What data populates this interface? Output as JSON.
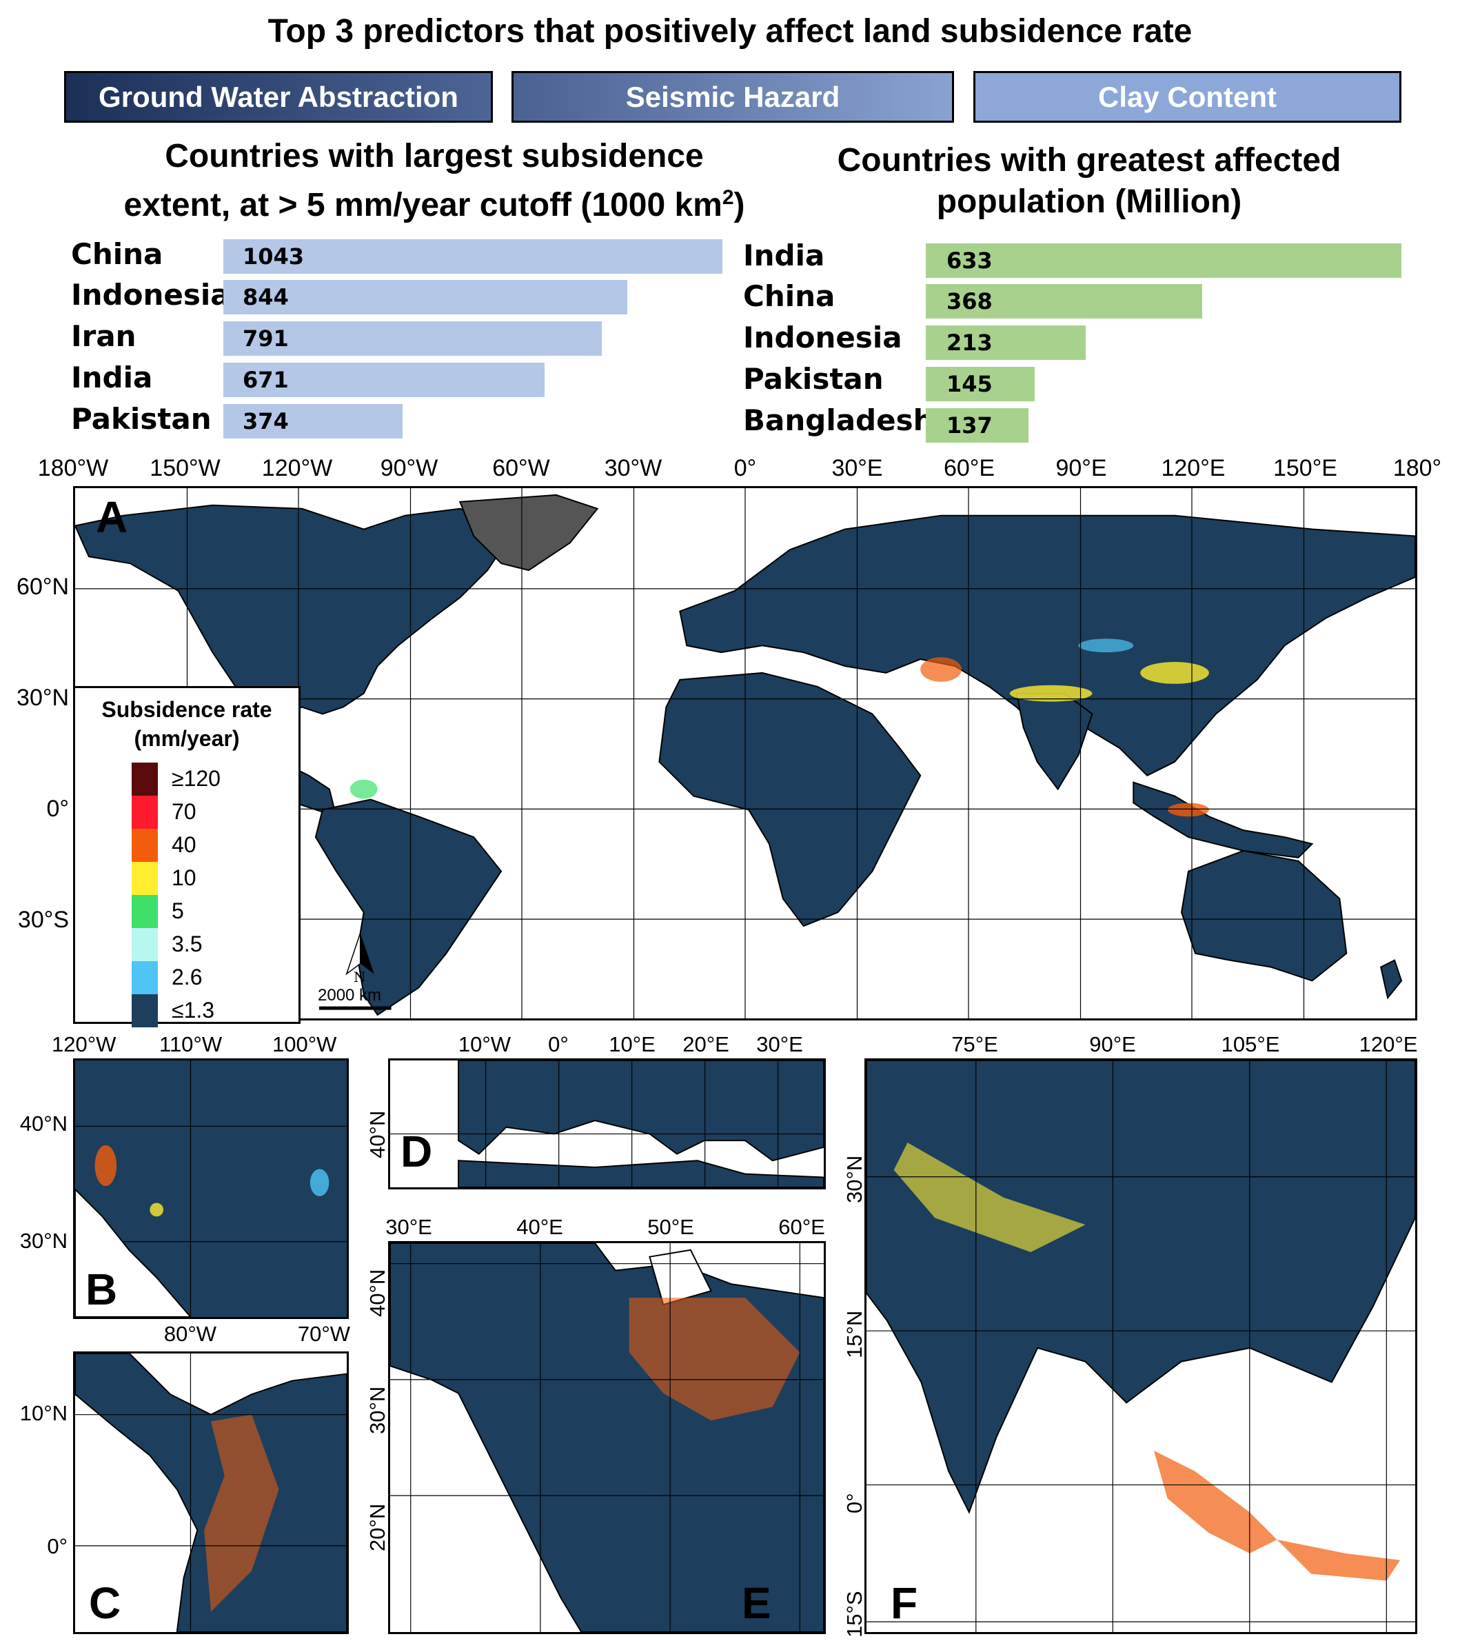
{
  "title": "Top 3 predictors that positively affect land subsidence rate",
  "predictors": [
    {
      "label": "Ground Water Abstraction",
      "color": "#1f3560"
    },
    {
      "label": "Seismic Hazard",
      "color": "#5b77a8"
    },
    {
      "label": "Clay Content",
      "color": "#8ba6d6"
    }
  ],
  "extent": {
    "title_line1": "Countries with largest subsidence",
    "title_line2": "extent, at > 5 mm/year cutoff  (1000 km",
    "title_sup": "2",
    "title_end": ")",
    "bar_color": "#b4c7e7",
    "items": [
      {
        "country": "China",
        "value": 1043
      },
      {
        "country": "Indonesia",
        "value": 844
      },
      {
        "country": "Iran",
        "value": 791
      },
      {
        "country": "India",
        "value": 671
      },
      {
        "country": "Pakistan",
        "value": 374
      }
    ]
  },
  "population": {
    "title_line1": "Countries with greatest affected",
    "title_line2": "population (Million)",
    "bar_color": "#a9d18e",
    "items": [
      {
        "country": "India",
        "value": 633
      },
      {
        "country": "China",
        "value": 368
      },
      {
        "country": "Indonesia",
        "value": 213
      },
      {
        "country": "Pakistan",
        "value": 145
      },
      {
        "country": "Bangladesh",
        "value": 137
      }
    ]
  },
  "map_a": {
    "letter": "A",
    "lon_ticks": [
      "180°W",
      "150°W",
      "120°W",
      "90°W",
      "60°W",
      "30°W",
      "0°",
      "30°E",
      "60°E",
      "90°E",
      "120°E",
      "150°E",
      "180°"
    ],
    "lat_ticks": [
      "60°N",
      "30°N",
      "0°",
      "30°S"
    ],
    "scale_label": "2000 km",
    "north_label": "N"
  },
  "legend": {
    "title_line1": "Subsidence rate",
    "title_line2": "(mm/year)",
    "entries": [
      {
        "label": "≥120",
        "color": "#5a0a0a"
      },
      {
        "label": "70",
        "color": "#ff1a2e"
      },
      {
        "label": "40",
        "color": "#f25c0c"
      },
      {
        "label": "10",
        "color": "#ffee30"
      },
      {
        "label": "5",
        "color": "#3fe06a"
      },
      {
        "label": "3.5",
        "color": "#b8f7f0"
      },
      {
        "label": "2.6",
        "color": "#4fc4f5"
      },
      {
        "label": "≤1.3",
        "color": "#1d3e5c"
      }
    ]
  },
  "panel_b": {
    "letter": "B",
    "lon_ticks": [
      "120°W",
      "110°W",
      "100°W"
    ],
    "lat_ticks": [
      "40°N",
      "30°N"
    ]
  },
  "panel_c": {
    "letter": "C",
    "lon_ticks": [
      "80°W",
      "70°W"
    ],
    "lat_ticks": [
      "10°N",
      "0°"
    ]
  },
  "panel_d": {
    "letter": "D",
    "lon_ticks": [
      "10°W",
      "0°",
      "10°E",
      "20°E",
      "30°E"
    ],
    "lat_ticks": [
      "40°N"
    ]
  },
  "panel_e": {
    "letter": "E",
    "lon_ticks": [
      "30°E",
      "40°E",
      "50°E",
      "60°E"
    ],
    "lat_ticks": [
      "40°N",
      "30°N",
      "20°N"
    ]
  },
  "panel_f": {
    "letter": "F",
    "lon_ticks": [
      "75°E",
      "90°E",
      "105°E",
      "120°E"
    ],
    "lat_ticks": [
      "30°N",
      "15°N",
      "0°",
      "15°S"
    ]
  },
  "colors": {
    "land": "#1d3e5c",
    "ice": "#555555",
    "ocean": "#ffffff"
  }
}
